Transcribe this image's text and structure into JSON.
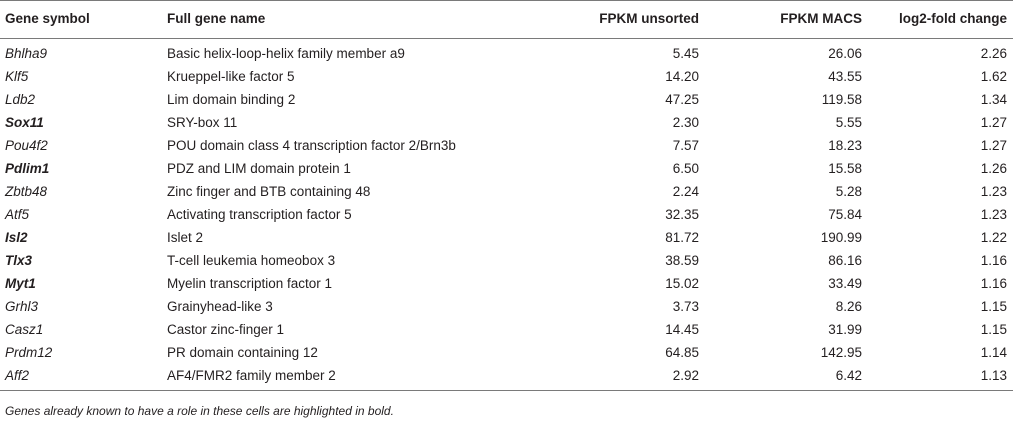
{
  "table": {
    "headers": {
      "symbol": "Gene symbol",
      "name": "Full gene name",
      "fpkm_unsorted": "FPKM unsorted",
      "fpkm_macs": "FPKM MACS",
      "log2fc": "log2-fold change"
    },
    "rows": [
      {
        "symbol": "Bhlha9",
        "bold": false,
        "name": "Basic helix-loop-helix family member a9",
        "fpkm_unsorted": "5.45",
        "fpkm_macs": "26.06",
        "log2fc": "2.26"
      },
      {
        "symbol": "Klf5",
        "bold": false,
        "name": "Krueppel-like factor 5",
        "fpkm_unsorted": "14.20",
        "fpkm_macs": "43.55",
        "log2fc": "1.62"
      },
      {
        "symbol": "Ldb2",
        "bold": false,
        "name": "Lim domain binding 2",
        "fpkm_unsorted": "47.25",
        "fpkm_macs": "119.58",
        "log2fc": "1.34"
      },
      {
        "symbol": "Sox11",
        "bold": true,
        "name": "SRY-box 11",
        "fpkm_unsorted": "2.30",
        "fpkm_macs": "5.55",
        "log2fc": "1.27"
      },
      {
        "symbol": "Pou4f2",
        "bold": false,
        "name": "POU domain class 4 transcription factor 2/Brn3b",
        "fpkm_unsorted": "7.57",
        "fpkm_macs": "18.23",
        "log2fc": "1.27"
      },
      {
        "symbol": "Pdlim1",
        "bold": true,
        "name": "PDZ and LIM domain protein 1",
        "fpkm_unsorted": "6.50",
        "fpkm_macs": "15.58",
        "log2fc": "1.26"
      },
      {
        "symbol": "Zbtb48",
        "bold": false,
        "name": "Zinc finger and BTB containing 48",
        "fpkm_unsorted": "2.24",
        "fpkm_macs": "5.28",
        "log2fc": "1.23"
      },
      {
        "symbol": "Atf5",
        "bold": false,
        "name": "Activating transcription factor 5",
        "fpkm_unsorted": "32.35",
        "fpkm_macs": "75.84",
        "log2fc": "1.23"
      },
      {
        "symbol": "Isl2",
        "bold": true,
        "name": "Islet 2",
        "fpkm_unsorted": "81.72",
        "fpkm_macs": "190.99",
        "log2fc": "1.22"
      },
      {
        "symbol": "Tlx3",
        "bold": true,
        "name": "T-cell leukemia homeobox 3",
        "fpkm_unsorted": "38.59",
        "fpkm_macs": "86.16",
        "log2fc": "1.16"
      },
      {
        "symbol": "Myt1",
        "bold": true,
        "name": "Myelin transcription factor 1",
        "fpkm_unsorted": "15.02",
        "fpkm_macs": "33.49",
        "log2fc": "1.16"
      },
      {
        "symbol": "Grhl3",
        "bold": false,
        "name": "Grainyhead-like 3",
        "fpkm_unsorted": "3.73",
        "fpkm_macs": "8.26",
        "log2fc": "1.15"
      },
      {
        "symbol": "Casz1",
        "bold": false,
        "name": "Castor zinc-finger 1",
        "fpkm_unsorted": "14.45",
        "fpkm_macs": "31.99",
        "log2fc": "1.15"
      },
      {
        "symbol": "Prdm12",
        "bold": false,
        "name": "PR domain containing 12",
        "fpkm_unsorted": "64.85",
        "fpkm_macs": "142.95",
        "log2fc": "1.14"
      },
      {
        "symbol": "Aff2",
        "bold": false,
        "name": "AF4/FMR2 family member 2",
        "fpkm_unsorted": "2.92",
        "fpkm_macs": "6.42",
        "log2fc": "1.13"
      }
    ]
  },
  "footnote": "Genes already known to have a role in these cells are highlighted in bold."
}
